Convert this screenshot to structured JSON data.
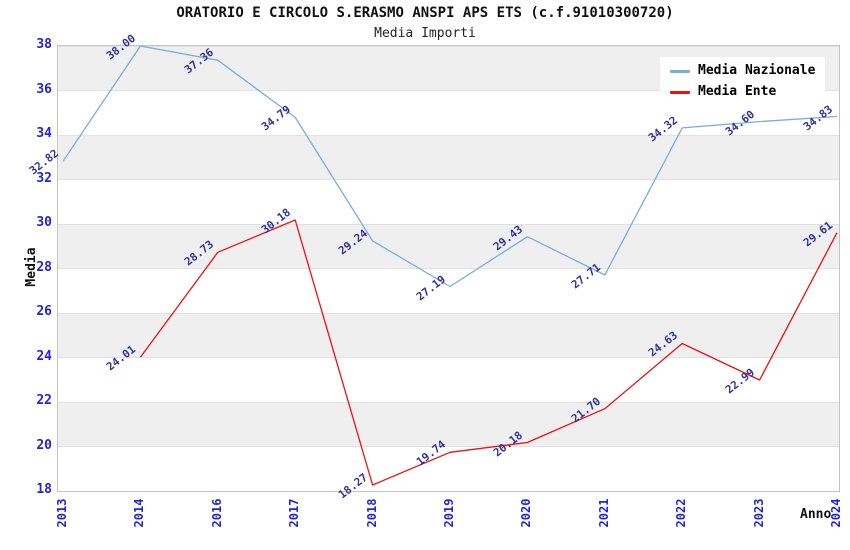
{
  "header": {
    "title": "ORATORIO E CIRCOLO S.ERASMO ANSPI APS ETS (c.f.91010300720)",
    "subtitle": "Media Importi"
  },
  "axes": {
    "y_label": "Media",
    "x_label": "Anno",
    "y_ticks": [
      18,
      20,
      22,
      24,
      26,
      28,
      30,
      32,
      34,
      36,
      38
    ],
    "x_ticks": [
      "2013",
      "2014",
      "2016",
      "2017",
      "2018",
      "2019",
      "2020",
      "2021",
      "2022",
      "2023",
      "2024"
    ]
  },
  "colors": {
    "media_nazionale": "#78aede",
    "media_ente": "#ee1111",
    "tick_label": "#2222e6",
    "data_label": "#333399",
    "band_gray": "#efefef",
    "plot_border": "#c4c4c4"
  },
  "chart_data": {
    "type": "line",
    "title": "ORATORIO E CIRCOLO S.ERASMO ANSPI APS ETS (c.f.91010300720)",
    "subtitle": "Media Importi",
    "xlabel": "Anno",
    "ylabel": "Media",
    "categories": [
      "2013",
      "2014",
      "2016",
      "2017",
      "2018",
      "2019",
      "2020",
      "2021",
      "2022",
      "2023",
      "2024"
    ],
    "series": [
      {
        "name": "Media Nazionale",
        "color": "#78aede",
        "values": [
          32.82,
          38.0,
          37.36,
          34.79,
          29.24,
          27.19,
          29.43,
          27.71,
          34.32,
          34.6,
          34.83
        ]
      },
      {
        "name": "Media Ente",
        "color": "#ee1111",
        "values": [
          null,
          24.01,
          28.73,
          30.18,
          18.27,
          19.74,
          20.18,
          21.7,
          24.63,
          22.99,
          29.61
        ]
      }
    ],
    "ylim": [
      18,
      38
    ],
    "grid": "horizontal-bands-alternating",
    "legend_position": "top-right",
    "data_labels": "shown, 2 decimals, rotated"
  }
}
